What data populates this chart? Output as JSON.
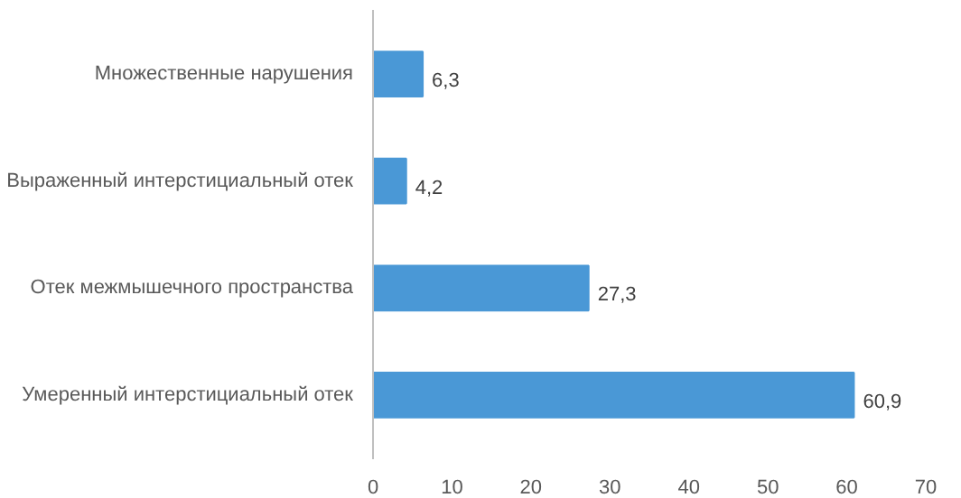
{
  "chart_data": {
    "type": "bar",
    "orientation": "horizontal",
    "categories": [
      "Множественные нарушения",
      "Выраженный интерстициальный отек",
      "Отек межмышечного пространства",
      "Умеренный интерстициальный отек"
    ],
    "values": [
      6.3,
      4.2,
      27.3,
      60.9
    ],
    "value_labels": [
      "6,3",
      "4,2",
      "27,3",
      "60,9"
    ],
    "color": "#4a98d6",
    "xlim": [
      0,
      70
    ],
    "xticks": [
      0,
      10,
      20,
      30,
      40,
      50,
      60,
      70
    ],
    "grid": false
  }
}
